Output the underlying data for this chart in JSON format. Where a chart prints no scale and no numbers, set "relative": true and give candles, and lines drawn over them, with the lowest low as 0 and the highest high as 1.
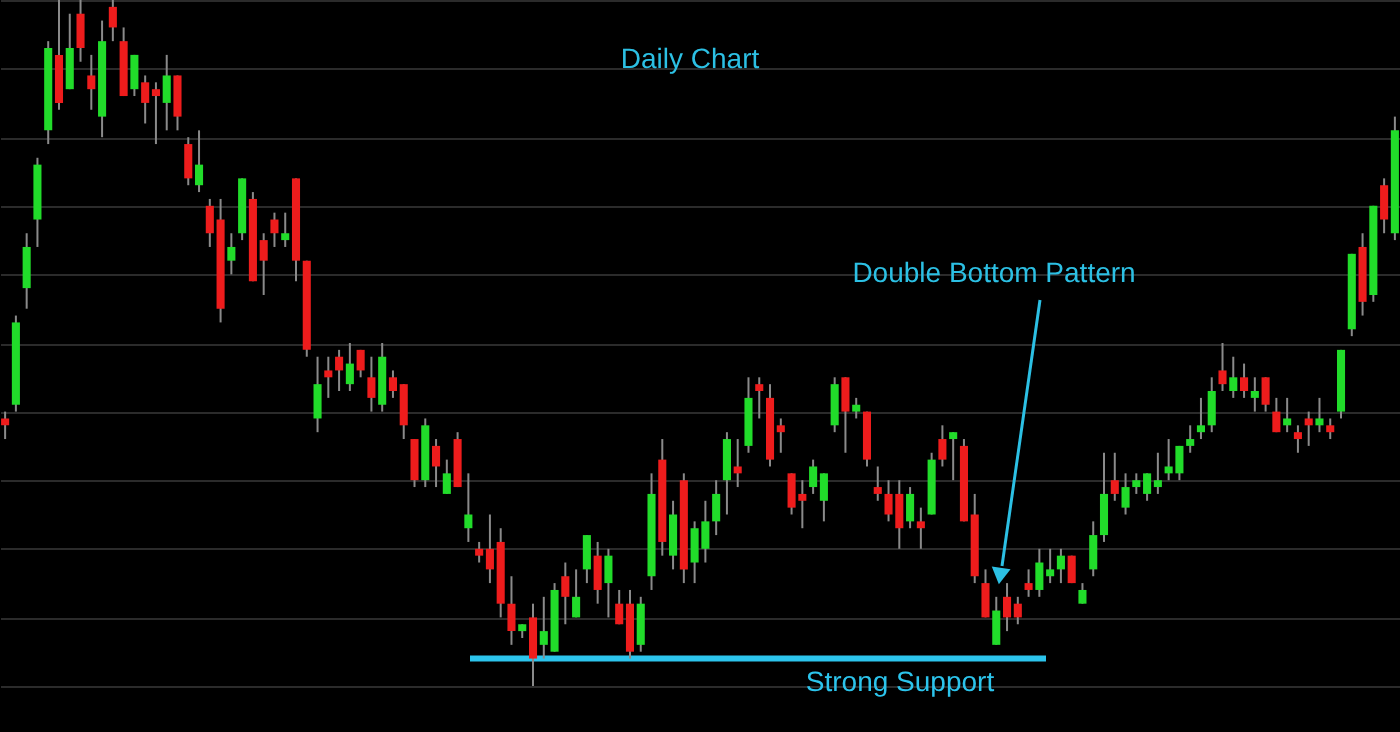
{
  "chart_data": {
    "type": "candlestick",
    "title": "Daily Chart",
    "annotations": [
      "Double Bottom Pattern"
    ],
    "relative": true,
    "grid": "y",
    "categories": [
      null,
      null,
      null,
      null,
      null,
      null,
      null,
      null,
      null,
      null,
      null,
      null,
      null,
      null,
      null,
      null,
      null,
      null,
      null,
      null,
      null,
      null,
      null,
      null,
      null,
      null,
      null,
      null,
      null,
      null,
      null,
      null,
      null,
      null,
      null,
      null,
      null,
      null,
      null,
      null,
      null,
      null,
      null,
      null,
      null,
      null,
      null,
      null,
      null,
      null,
      null,
      null,
      null,
      null,
      null,
      null,
      null,
      null,
      null,
      null,
      null,
      null,
      null,
      null,
      null,
      null,
      null,
      null,
      null,
      null,
      null,
      null,
      null,
      null,
      null,
      null,
      null,
      null,
      null,
      null,
      null,
      null,
      null,
      null,
      null,
      null,
      null,
      null,
      null,
      null,
      null,
      null,
      null,
      null,
      null,
      null,
      null,
      null,
      null,
      null,
      null,
      null,
      null,
      null,
      null,
      null,
      null,
      null,
      null,
      null,
      null,
      null,
      null,
      null,
      null,
      null,
      null,
      null,
      null,
      null,
      null,
      null,
      null,
      null,
      null,
      null,
      null,
      null,
      null,
      null
    ],
    "ohlc": [
      [
        0.39,
        0.4,
        0.36,
        0.38
      ],
      [
        0.41,
        0.54,
        0.4,
        0.53
      ],
      [
        0.58,
        0.66,
        0.55,
        0.64
      ],
      [
        0.68,
        0.77,
        0.64,
        0.76
      ],
      [
        0.81,
        0.94,
        0.79,
        0.93
      ],
      [
        0.92,
        1,
        0.84,
        0.85
      ],
      [
        0.87,
        0.98,
        0.87,
        0.93
      ],
      [
        0.98,
        1,
        0.91,
        0.93
      ],
      [
        0.89,
        0.92,
        0.84,
        0.87
      ],
      [
        0.83,
        0.97,
        0.8,
        0.94
      ],
      [
        0.99,
        1,
        0.94,
        0.96
      ],
      [
        0.94,
        0.96,
        0.86,
        0.86
      ],
      [
        0.87,
        0.92,
        0.86,
        0.92
      ],
      [
        0.88,
        0.89,
        0.82,
        0.85
      ],
      [
        0.87,
        0.88,
        0.79,
        0.86
      ],
      [
        0.85,
        0.92,
        0.81,
        0.89
      ],
      [
        0.89,
        0.89,
        0.81,
        0.83
      ],
      [
        0.79,
        0.8,
        0.73,
        0.74
      ],
      [
        0.73,
        0.81,
        0.72,
        0.76
      ],
      [
        0.7,
        0.71,
        0.64,
        0.66
      ],
      [
        0.68,
        0.71,
        0.53,
        0.55
      ],
      [
        0.62,
        0.66,
        0.6,
        0.64
      ],
      [
        0.66,
        0.74,
        0.65,
        0.74
      ],
      [
        0.71,
        0.72,
        0.59,
        0.59
      ],
      [
        0.65,
        0.66,
        0.57,
        0.62
      ],
      [
        0.68,
        0.69,
        0.64,
        0.66
      ],
      [
        0.65,
        0.69,
        0.64,
        0.66
      ],
      [
        0.74,
        0.74,
        0.59,
        0.62
      ],
      [
        0.62,
        0.62,
        0.48,
        0.49
      ],
      [
        0.39,
        0.48,
        0.37,
        0.44
      ],
      [
        0.46,
        0.48,
        0.42,
        0.45
      ],
      [
        0.48,
        0.49,
        0.43,
        0.46
      ],
      [
        0.44,
        0.5,
        0.43,
        0.47
      ],
      [
        0.49,
        0.49,
        0.45,
        0.46
      ],
      [
        0.45,
        0.48,
        0.4,
        0.42
      ],
      [
        0.41,
        0.5,
        0.4,
        0.48
      ],
      [
        0.45,
        0.46,
        0.42,
        0.43
      ],
      [
        0.44,
        0.44,
        0.36,
        0.38
      ],
      [
        0.36,
        0.36,
        0.29,
        0.3
      ],
      [
        0.3,
        0.39,
        0.29,
        0.38
      ],
      [
        0.35,
        0.36,
        0.29,
        0.32
      ],
      [
        0.28,
        0.33,
        0.28,
        0.31
      ],
      [
        0.36,
        0.37,
        0.29,
        0.29
      ],
      [
        0.23,
        0.31,
        0.21,
        0.25
      ],
      [
        0.2,
        0.21,
        0.18,
        0.19
      ],
      [
        0.2,
        0.25,
        0.15,
        0.17
      ],
      [
        0.21,
        0.23,
        0.1,
        0.12
      ],
      [
        0.12,
        0.16,
        0.06,
        0.08
      ],
      [
        0.08,
        0.09,
        0.07,
        0.09
      ],
      [
        0.1,
        0.12,
        0,
        0.04
      ],
      [
        0.06,
        0.13,
        0.04,
        0.08
      ],
      [
        0.05,
        0.15,
        0.05,
        0.14
      ],
      [
        0.16,
        0.18,
        0.09,
        0.13
      ],
      [
        0.1,
        0.17,
        0.1,
        0.13
      ],
      [
        0.17,
        0.22,
        0.15,
        0.22
      ],
      [
        0.19,
        0.21,
        0.12,
        0.14
      ],
      [
        0.15,
        0.2,
        0.1,
        0.19
      ],
      [
        0.12,
        0.14,
        0.09,
        0.09
      ],
      [
        0.12,
        0.14,
        0.04,
        0.05
      ],
      [
        0.06,
        0.13,
        0.05,
        0.12
      ],
      [
        0.16,
        0.31,
        0.14,
        0.28
      ],
      [
        0.33,
        0.36,
        0.19,
        0.21
      ],
      [
        0.19,
        0.27,
        0.17,
        0.25
      ],
      [
        0.3,
        0.31,
        0.15,
        0.17
      ],
      [
        0.18,
        0.24,
        0.15,
        0.23
      ],
      [
        0.2,
        0.27,
        0.18,
        0.24
      ],
      [
        0.24,
        0.3,
        0.22,
        0.28
      ],
      [
        0.3,
        0.37,
        0.25,
        0.36
      ],
      [
        0.32,
        0.36,
        0.29,
        0.31
      ],
      [
        0.35,
        0.45,
        0.34,
        0.42
      ],
      [
        0.44,
        0.45,
        0.39,
        0.43
      ],
      [
        0.42,
        0.44,
        0.32,
        0.33
      ],
      [
        0.38,
        0.39,
        0.34,
        0.37
      ],
      [
        0.31,
        0.31,
        0.25,
        0.26
      ],
      [
        0.28,
        0.3,
        0.23,
        0.27
      ],
      [
        0.29,
        0.33,
        0.28,
        0.32
      ],
      [
        0.27,
        0.31,
        0.24,
        0.31
      ],
      [
        0.38,
        0.45,
        0.37,
        0.44
      ],
      [
        0.45,
        0.45,
        0.34,
        0.4
      ],
      [
        0.4,
        0.42,
        0.39,
        0.41
      ],
      [
        0.4,
        0.4,
        0.32,
        0.33
      ],
      [
        0.29,
        0.32,
        0.27,
        0.28
      ],
      [
        0.28,
        0.3,
        0.24,
        0.25
      ],
      [
        0.28,
        0.3,
        0.2,
        0.23
      ],
      [
        0.24,
        0.29,
        0.23,
        0.28
      ],
      [
        0.24,
        0.26,
        0.2,
        0.23
      ],
      [
        0.25,
        0.34,
        0.25,
        0.33
      ],
      [
        0.36,
        0.38,
        0.32,
        0.33
      ],
      [
        0.36,
        0.37,
        0.3,
        0.37
      ],
      [
        0.35,
        0.36,
        0.24,
        0.24
      ],
      [
        0.25,
        0.28,
        0.15,
        0.16
      ],
      [
        0.15,
        0.17,
        0.1,
        0.1
      ],
      [
        0.06,
        0.13,
        0.06,
        0.11
      ],
      [
        0.13,
        0.15,
        0.08,
        0.1
      ],
      [
        0.12,
        0.13,
        0.09,
        0.1
      ],
      [
        0.15,
        0.17,
        0.13,
        0.14
      ],
      [
        0.14,
        0.2,
        0.13,
        0.18
      ],
      [
        0.16,
        0.2,
        0.15,
        0.17
      ],
      [
        0.17,
        0.2,
        0.15,
        0.19
      ],
      [
        0.19,
        0.19,
        0.15,
        0.15
      ],
      [
        0.12,
        0.15,
        0.12,
        0.14
      ],
      [
        0.17,
        0.24,
        0.16,
        0.22
      ],
      [
        0.22,
        0.34,
        0.21,
        0.28
      ],
      [
        0.3,
        0.34,
        0.27,
        0.28
      ],
      [
        0.26,
        0.31,
        0.25,
        0.29
      ],
      [
        0.29,
        0.31,
        0.28,
        0.3
      ],
      [
        0.28,
        0.31,
        0.27,
        0.31
      ],
      [
        0.29,
        0.34,
        0.28,
        0.3
      ],
      [
        0.31,
        0.36,
        0.3,
        0.32
      ],
      [
        0.31,
        0.35,
        0.3,
        0.35
      ],
      [
        0.35,
        0.38,
        0.34,
        0.36
      ],
      [
        0.37,
        0.42,
        0.36,
        0.38
      ],
      [
        0.38,
        0.45,
        0.37,
        0.43
      ],
      [
        0.46,
        0.5,
        0.43,
        0.44
      ],
      [
        0.43,
        0.48,
        0.42,
        0.45
      ],
      [
        0.45,
        0.47,
        0.42,
        0.43
      ],
      [
        0.42,
        0.45,
        0.4,
        0.43
      ],
      [
        0.45,
        0.45,
        0.4,
        0.41
      ],
      [
        0.4,
        0.42,
        0.37,
        0.37
      ],
      [
        0.38,
        0.42,
        0.37,
        0.39
      ],
      [
        0.37,
        0.38,
        0.34,
        0.36
      ],
      [
        0.39,
        0.4,
        0.35,
        0.38
      ],
      [
        0.38,
        0.42,
        0.37,
        0.39
      ],
      [
        0.38,
        0.39,
        0.36,
        0.37
      ],
      [
        0.4,
        0.49,
        0.39,
        0.49
      ],
      [
        0.52,
        0.63,
        0.51,
        0.63
      ],
      [
        0.64,
        0.66,
        0.54,
        0.56
      ],
      [
        0.57,
        0.7,
        0.56,
        0.7
      ],
      [
        0.73,
        0.74,
        0.66,
        0.68
      ],
      [
        0.66,
        0.83,
        0.65,
        0.81
      ]
    ],
    "colors": [
      "#ee1c1c",
      "#21dc2a",
      "#21dc2a",
      "#21dc2a",
      "#21dc2a",
      "#ee1c1c",
      "#21dc2a",
      "#ee1c1c",
      "#ee1c1c",
      "#21dc2a",
      "#ee1c1c",
      "#ee1c1c",
      "#21dc2a",
      "#ee1c1c",
      "#ee1c1c",
      "#21dc2a",
      "#ee1c1c",
      "#ee1c1c",
      "#21dc2a",
      "#ee1c1c",
      "#ee1c1c",
      "#21dc2a",
      "#21dc2a",
      "#ee1c1c",
      "#ee1c1c",
      "#ee1c1c",
      "#21dc2a",
      "#ee1c1c",
      "#ee1c1c",
      "#21dc2a",
      "#ee1c1c",
      "#ee1c1c",
      "#21dc2a",
      "#ee1c1c",
      "#ee1c1c",
      "#21dc2a",
      "#ee1c1c",
      "#ee1c1c",
      "#ee1c1c",
      "#21dc2a",
      "#ee1c1c",
      "#21dc2a",
      "#ee1c1c",
      "#21dc2a",
      "#ee1c1c",
      "#ee1c1c",
      "#ee1c1c",
      "#ee1c1c",
      "#21dc2a",
      "#ee1c1c",
      "#21dc2a",
      "#21dc2a",
      "#ee1c1c",
      "#21dc2a",
      "#21dc2a",
      "#ee1c1c",
      "#21dc2a",
      "#ee1c1c",
      "#ee1c1c",
      "#21dc2a",
      "#21dc2a",
      "#ee1c1c",
      "#21dc2a",
      "#ee1c1c",
      "#21dc2a",
      "#21dc2a",
      "#21dc2a",
      "#21dc2a",
      "#ee1c1c",
      "#21dc2a",
      "#ee1c1c",
      "#ee1c1c",
      "#ee1c1c",
      "#ee1c1c",
      "#ee1c1c",
      "#21dc2a",
      "#21dc2a",
      "#21dc2a",
      "#ee1c1c",
      "#21dc2a",
      "#ee1c1c",
      "#ee1c1c",
      "#ee1c1c",
      "#ee1c1c",
      "#21dc2a",
      "#ee1c1c",
      "#21dc2a",
      "#ee1c1c",
      "#21dc2a",
      "#ee1c1c",
      "#ee1c1c",
      "#ee1c1c",
      "#21dc2a",
      "#ee1c1c",
      "#ee1c1c",
      "#ee1c1c",
      "#21dc2a",
      "#21dc2a",
      "#21dc2a",
      "#ee1c1c",
      "#21dc2a",
      "#21dc2a",
      "#21dc2a",
      "#ee1c1c",
      "#21dc2a",
      "#21dc2a",
      "#21dc2a",
      "#21dc2a",
      "#21dc2a",
      "#21dc2a",
      "#21dc2a",
      "#21dc2a",
      "#21dc2a",
      "#ee1c1c",
      "#21dc2a",
      "#ee1c1c",
      "#21dc2a",
      "#ee1c1c",
      "#ee1c1c",
      "#21dc2a",
      "#ee1c1c",
      "#ee1c1c",
      "#21dc2a",
      "#ee1c1c",
      "#21dc2a",
      "#21dc2a",
      "#ee1c1c",
      "#21dc2a",
      "#ee1c1c",
      "#21dc2a"
    ],
    "ref_lines": [
      {
        "axis": "y",
        "value": 0.04,
        "label": "Strong Support",
        "color": "#2cc4ec"
      }
    ]
  }
}
